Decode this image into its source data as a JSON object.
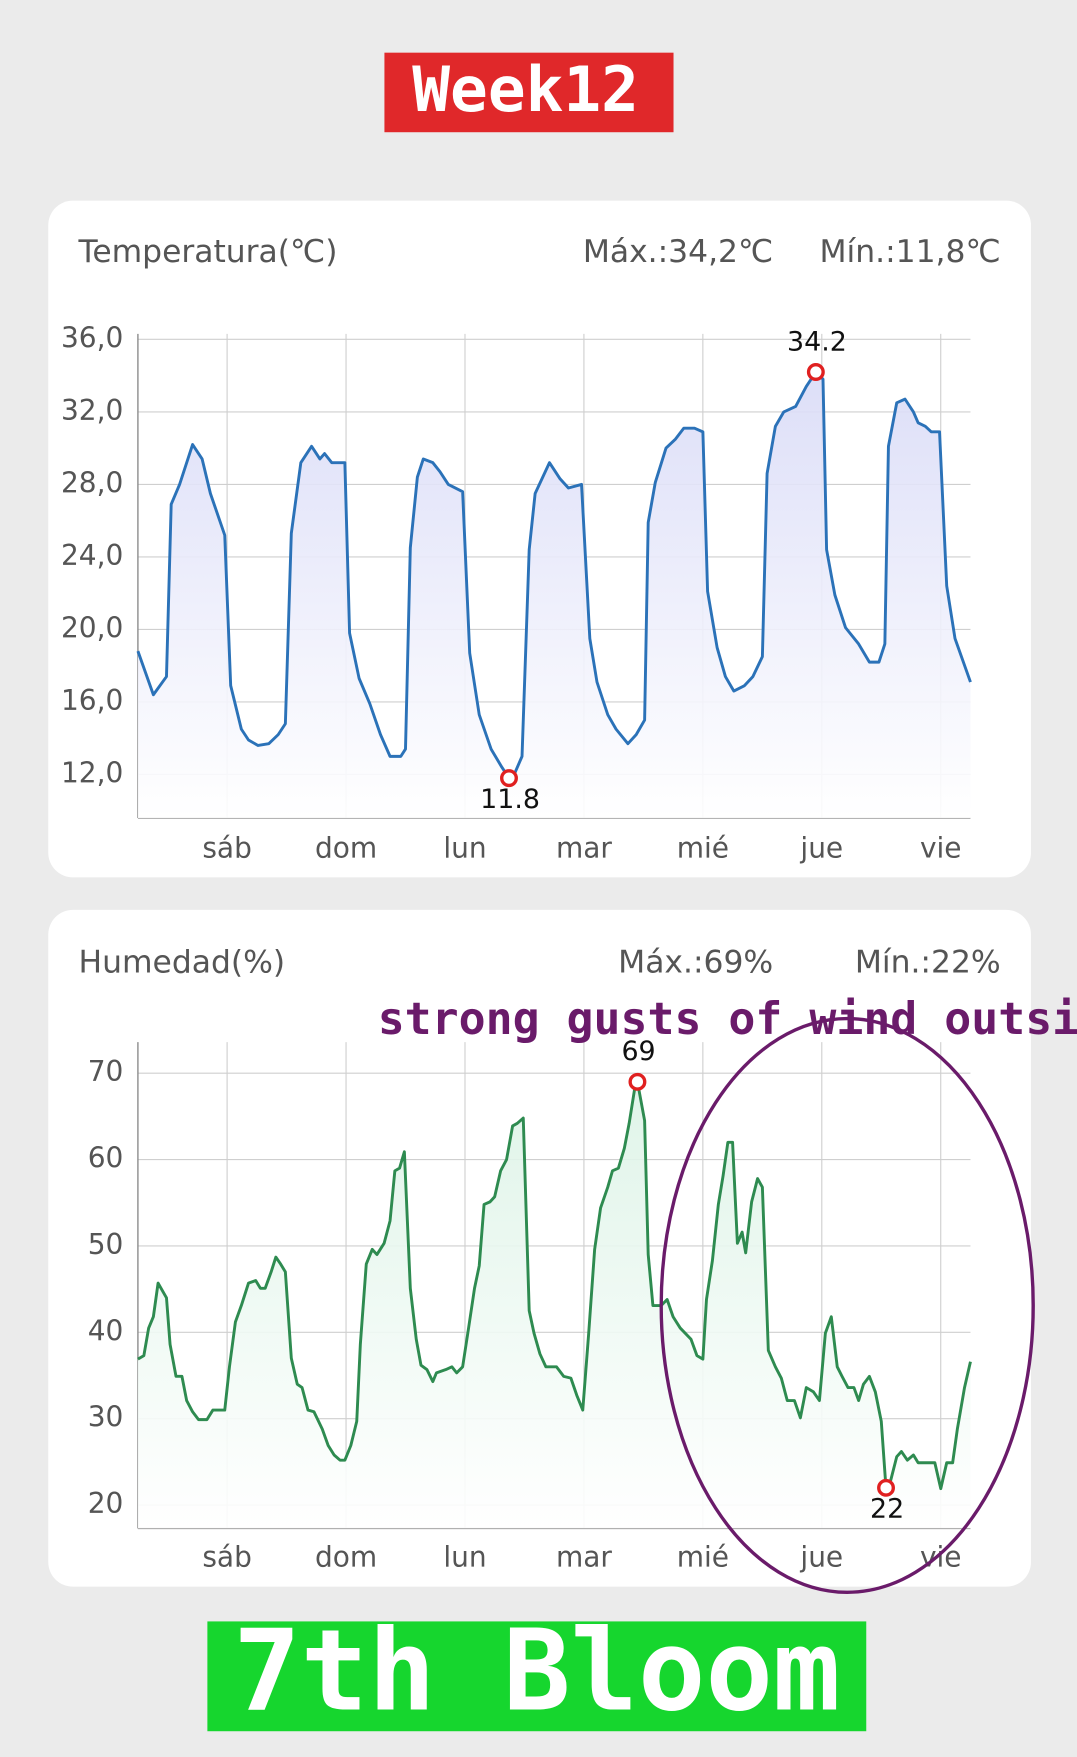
{
  "header": {
    "title": "Week12"
  },
  "annotation": {
    "text": "strong gusts of wind outside"
  },
  "footer": {
    "text": "7th Bloom"
  },
  "chart_data": [
    {
      "type": "line",
      "title": "Temperatura(℃)",
      "stats": [
        "Máx.:34,2℃",
        "Mín.:11,8℃"
      ],
      "color": "#2b72b8",
      "fill": "#d9dbf7",
      "x": [
        0.25,
        0.38,
        0.49,
        0.53,
        0.6,
        0.71,
        0.79,
        0.86,
        0.98,
        1.03,
        1.12,
        1.18,
        1.26,
        1.35,
        1.43,
        1.49,
        1.54,
        1.62,
        1.71,
        1.78,
        1.82,
        1.88,
        1.99,
        2.03,
        2.11,
        2.2,
        2.29,
        2.37,
        2.46,
        2.5,
        2.54,
        2.6,
        2.65,
        2.73,
        2.79,
        2.86,
        2.98,
        3.04,
        3.12,
        3.22,
        3.31,
        3.37,
        3.42,
        3.48,
        3.54,
        3.59,
        3.71,
        3.8,
        3.87,
        3.98,
        4.05,
        4.11,
        4.2,
        4.27,
        4.37,
        4.44,
        4.51,
        4.54,
        4.6,
        4.69,
        4.77,
        4.84,
        4.93,
        5.0,
        5.04,
        5.12,
        5.19,
        5.26,
        5.35,
        5.42,
        5.5,
        5.54,
        5.61,
        5.68,
        5.78,
        5.87,
        5.95,
        6.01,
        6.04,
        6.11,
        6.2,
        6.31,
        6.4,
        6.48,
        6.53,
        6.56,
        6.63,
        6.7,
        6.77,
        6.81,
        6.87,
        6.92,
        6.99,
        7.05,
        7.12,
        7.25
      ],
      "values": [
        18.8,
        16.4,
        17.4,
        26.9,
        28.0,
        30.2,
        29.4,
        27.5,
        25.2,
        16.9,
        14.5,
        13.9,
        13.6,
        13.7,
        14.2,
        14.8,
        25.3,
        29.2,
        30.1,
        29.4,
        29.7,
        29.2,
        29.2,
        19.8,
        17.3,
        15.9,
        14.2,
        13.0,
        13.0,
        13.4,
        24.5,
        28.4,
        29.4,
        29.2,
        28.7,
        28.0,
        27.6,
        18.7,
        15.3,
        13.4,
        12.4,
        11.8,
        12.1,
        13.0,
        24.4,
        27.5,
        29.2,
        28.3,
        27.8,
        28.0,
        19.5,
        17.1,
        15.3,
        14.5,
        13.7,
        14.2,
        15.0,
        25.9,
        28.1,
        30.0,
        30.5,
        31.1,
        31.1,
        30.9,
        22.1,
        19.0,
        17.4,
        16.6,
        16.9,
        17.4,
        18.5,
        28.6,
        31.2,
        32.0,
        32.3,
        33.4,
        34.2,
        33.8,
        24.4,
        21.9,
        20.1,
        19.2,
        18.2,
        18.2,
        19.2,
        30.1,
        32.5,
        32.7,
        32.0,
        31.4,
        31.2,
        30.9,
        30.9,
        22.4,
        19.5,
        17.1
      ],
      "point_labels": [
        {
          "x": 5.95,
          "value": 34.2
        },
        {
          "x": 3.37,
          "value": 11.8
        }
      ],
      "xlim": [
        0.25,
        7.25
      ],
      "xticks": [
        {
          "value": 1,
          "label": "sáb"
        },
        {
          "value": 2,
          "label": "dom"
        },
        {
          "value": 3,
          "label": "lun"
        },
        {
          "value": 4,
          "label": "mar"
        },
        {
          "value": 5,
          "label": "mié"
        },
        {
          "value": 6,
          "label": "jue"
        },
        {
          "value": 7,
          "label": "vie"
        }
      ],
      "ylim": [
        9.6,
        36.3
      ],
      "yticks": [
        {
          "value": 12,
          "label": "12,0"
        },
        {
          "value": 16,
          "label": "16,0"
        },
        {
          "value": 20,
          "label": "20,0"
        },
        {
          "value": 24,
          "label": "24,0"
        },
        {
          "value": 28,
          "label": "28,0"
        },
        {
          "value": 32,
          "label": "32,0"
        },
        {
          "value": 36,
          "label": "36,0"
        }
      ],
      "grid": true
    },
    {
      "type": "line",
      "title": "Humedad(%)",
      "stats": [
        "Máx.:69%",
        "Mín.:22%"
      ],
      "color": "#2e8b50",
      "fill": "#dcf3e6",
      "x": [
        0.25,
        0.3,
        0.34,
        0.38,
        0.42,
        0.49,
        0.52,
        0.57,
        0.62,
        0.66,
        0.71,
        0.76,
        0.83,
        0.88,
        0.98,
        1.02,
        1.07,
        1.12,
        1.18,
        1.24,
        1.28,
        1.32,
        1.37,
        1.41,
        1.45,
        1.49,
        1.54,
        1.59,
        1.63,
        1.68,
        1.73,
        1.8,
        1.85,
        1.9,
        1.95,
        1.99,
        2.04,
        2.09,
        2.12,
        2.17,
        2.22,
        2.26,
        2.32,
        2.37,
        2.41,
        2.45,
        2.49,
        2.54,
        2.59,
        2.63,
        2.68,
        2.73,
        2.76,
        2.84,
        2.89,
        2.93,
        2.98,
        3.03,
        3.08,
        3.12,
        3.16,
        3.21,
        3.25,
        3.3,
        3.35,
        3.4,
        3.44,
        3.49,
        3.54,
        3.58,
        3.63,
        3.68,
        3.77,
        3.83,
        3.89,
        3.94,
        3.99,
        4.04,
        4.09,
        4.14,
        4.2,
        4.24,
        4.29,
        4.34,
        4.38,
        4.43,
        4.45,
        4.51,
        4.54,
        4.58,
        4.65,
        4.7,
        4.75,
        4.81,
        4.9,
        4.95,
        5.0,
        5.03,
        5.08,
        5.13,
        5.17,
        5.21,
        5.25,
        5.29,
        5.33,
        5.36,
        5.41,
        5.46,
        5.5,
        5.55,
        5.61,
        5.66,
        5.71,
        5.77,
        5.82,
        5.87,
        5.93,
        5.98,
        6.03,
        6.08,
        6.13,
        6.17,
        6.22,
        6.27,
        6.31,
        6.35,
        6.4,
        6.45,
        6.5,
        6.54,
        6.58,
        6.63,
        6.67,
        6.72,
        6.77,
        6.81,
        6.91,
        6.95,
        7.0,
        7.05,
        7.1,
        7.14,
        7.2,
        7.25
      ],
      "values": [
        36.9,
        37.3,
        40.5,
        41.8,
        45.7,
        44.0,
        38.6,
        34.9,
        34.9,
        32.1,
        30.8,
        29.9,
        29.9,
        31.0,
        31.0,
        36.0,
        41.2,
        43.1,
        45.7,
        46.0,
        45.1,
        45.1,
        47.0,
        48.7,
        47.9,
        47.0,
        37.0,
        34.0,
        33.6,
        31.0,
        30.8,
        28.8,
        26.9,
        25.8,
        25.2,
        25.2,
        26.9,
        29.7,
        38.6,
        47.9,
        49.6,
        49.0,
        50.3,
        52.9,
        58.7,
        59.0,
        60.9,
        45.1,
        39.2,
        36.2,
        35.7,
        34.3,
        35.3,
        35.7,
        36.0,
        35.3,
        36.0,
        40.5,
        45.1,
        47.7,
        54.8,
        55.1,
        55.7,
        58.7,
        60.0,
        63.9,
        64.2,
        64.8,
        42.5,
        39.9,
        37.5,
        36.0,
        36.0,
        34.9,
        34.7,
        32.7,
        31.0,
        39.9,
        49.6,
        54.4,
        56.8,
        58.7,
        59.0,
        61.3,
        64.2,
        68.5,
        69,
        64.5,
        49.0,
        43.1,
        43.1,
        43.8,
        41.8,
        40.5,
        39.2,
        37.3,
        36.9,
        43.8,
        48.3,
        54.8,
        58.1,
        62.0,
        62.0,
        50.3,
        51.6,
        49.2,
        55.1,
        57.8,
        56.8,
        37.9,
        36.0,
        34.7,
        32.1,
        32.1,
        30.1,
        33.6,
        33.1,
        32.1,
        39.9,
        41.8,
        36.0,
        34.9,
        33.6,
        33.6,
        32.1,
        34.0,
        34.9,
        33.1,
        29.7,
        22,
        22.9,
        25.6,
        26.2,
        25.2,
        25.8,
        24.9,
        24.9,
        24.9,
        21.9,
        24.9,
        24.9,
        28.8,
        33.6,
        36.6
      ],
      "point_labels": [
        {
          "x": 4.45,
          "value": 69
        },
        {
          "x": 6.54,
          "value": 22
        }
      ],
      "xlim": [
        0.25,
        7.25
      ],
      "xticks": [
        {
          "value": 1,
          "label": "sáb"
        },
        {
          "value": 2,
          "label": "dom"
        },
        {
          "value": 3,
          "label": "lun"
        },
        {
          "value": 4,
          "label": "mar"
        },
        {
          "value": 5,
          "label": "mié"
        },
        {
          "value": 6,
          "label": "jue"
        },
        {
          "value": 7,
          "label": "vie"
        }
      ],
      "ylim": [
        17.3,
        73.6
      ],
      "yticks": [
        20,
        30,
        40,
        50,
        60,
        70
      ],
      "grid": true
    }
  ]
}
